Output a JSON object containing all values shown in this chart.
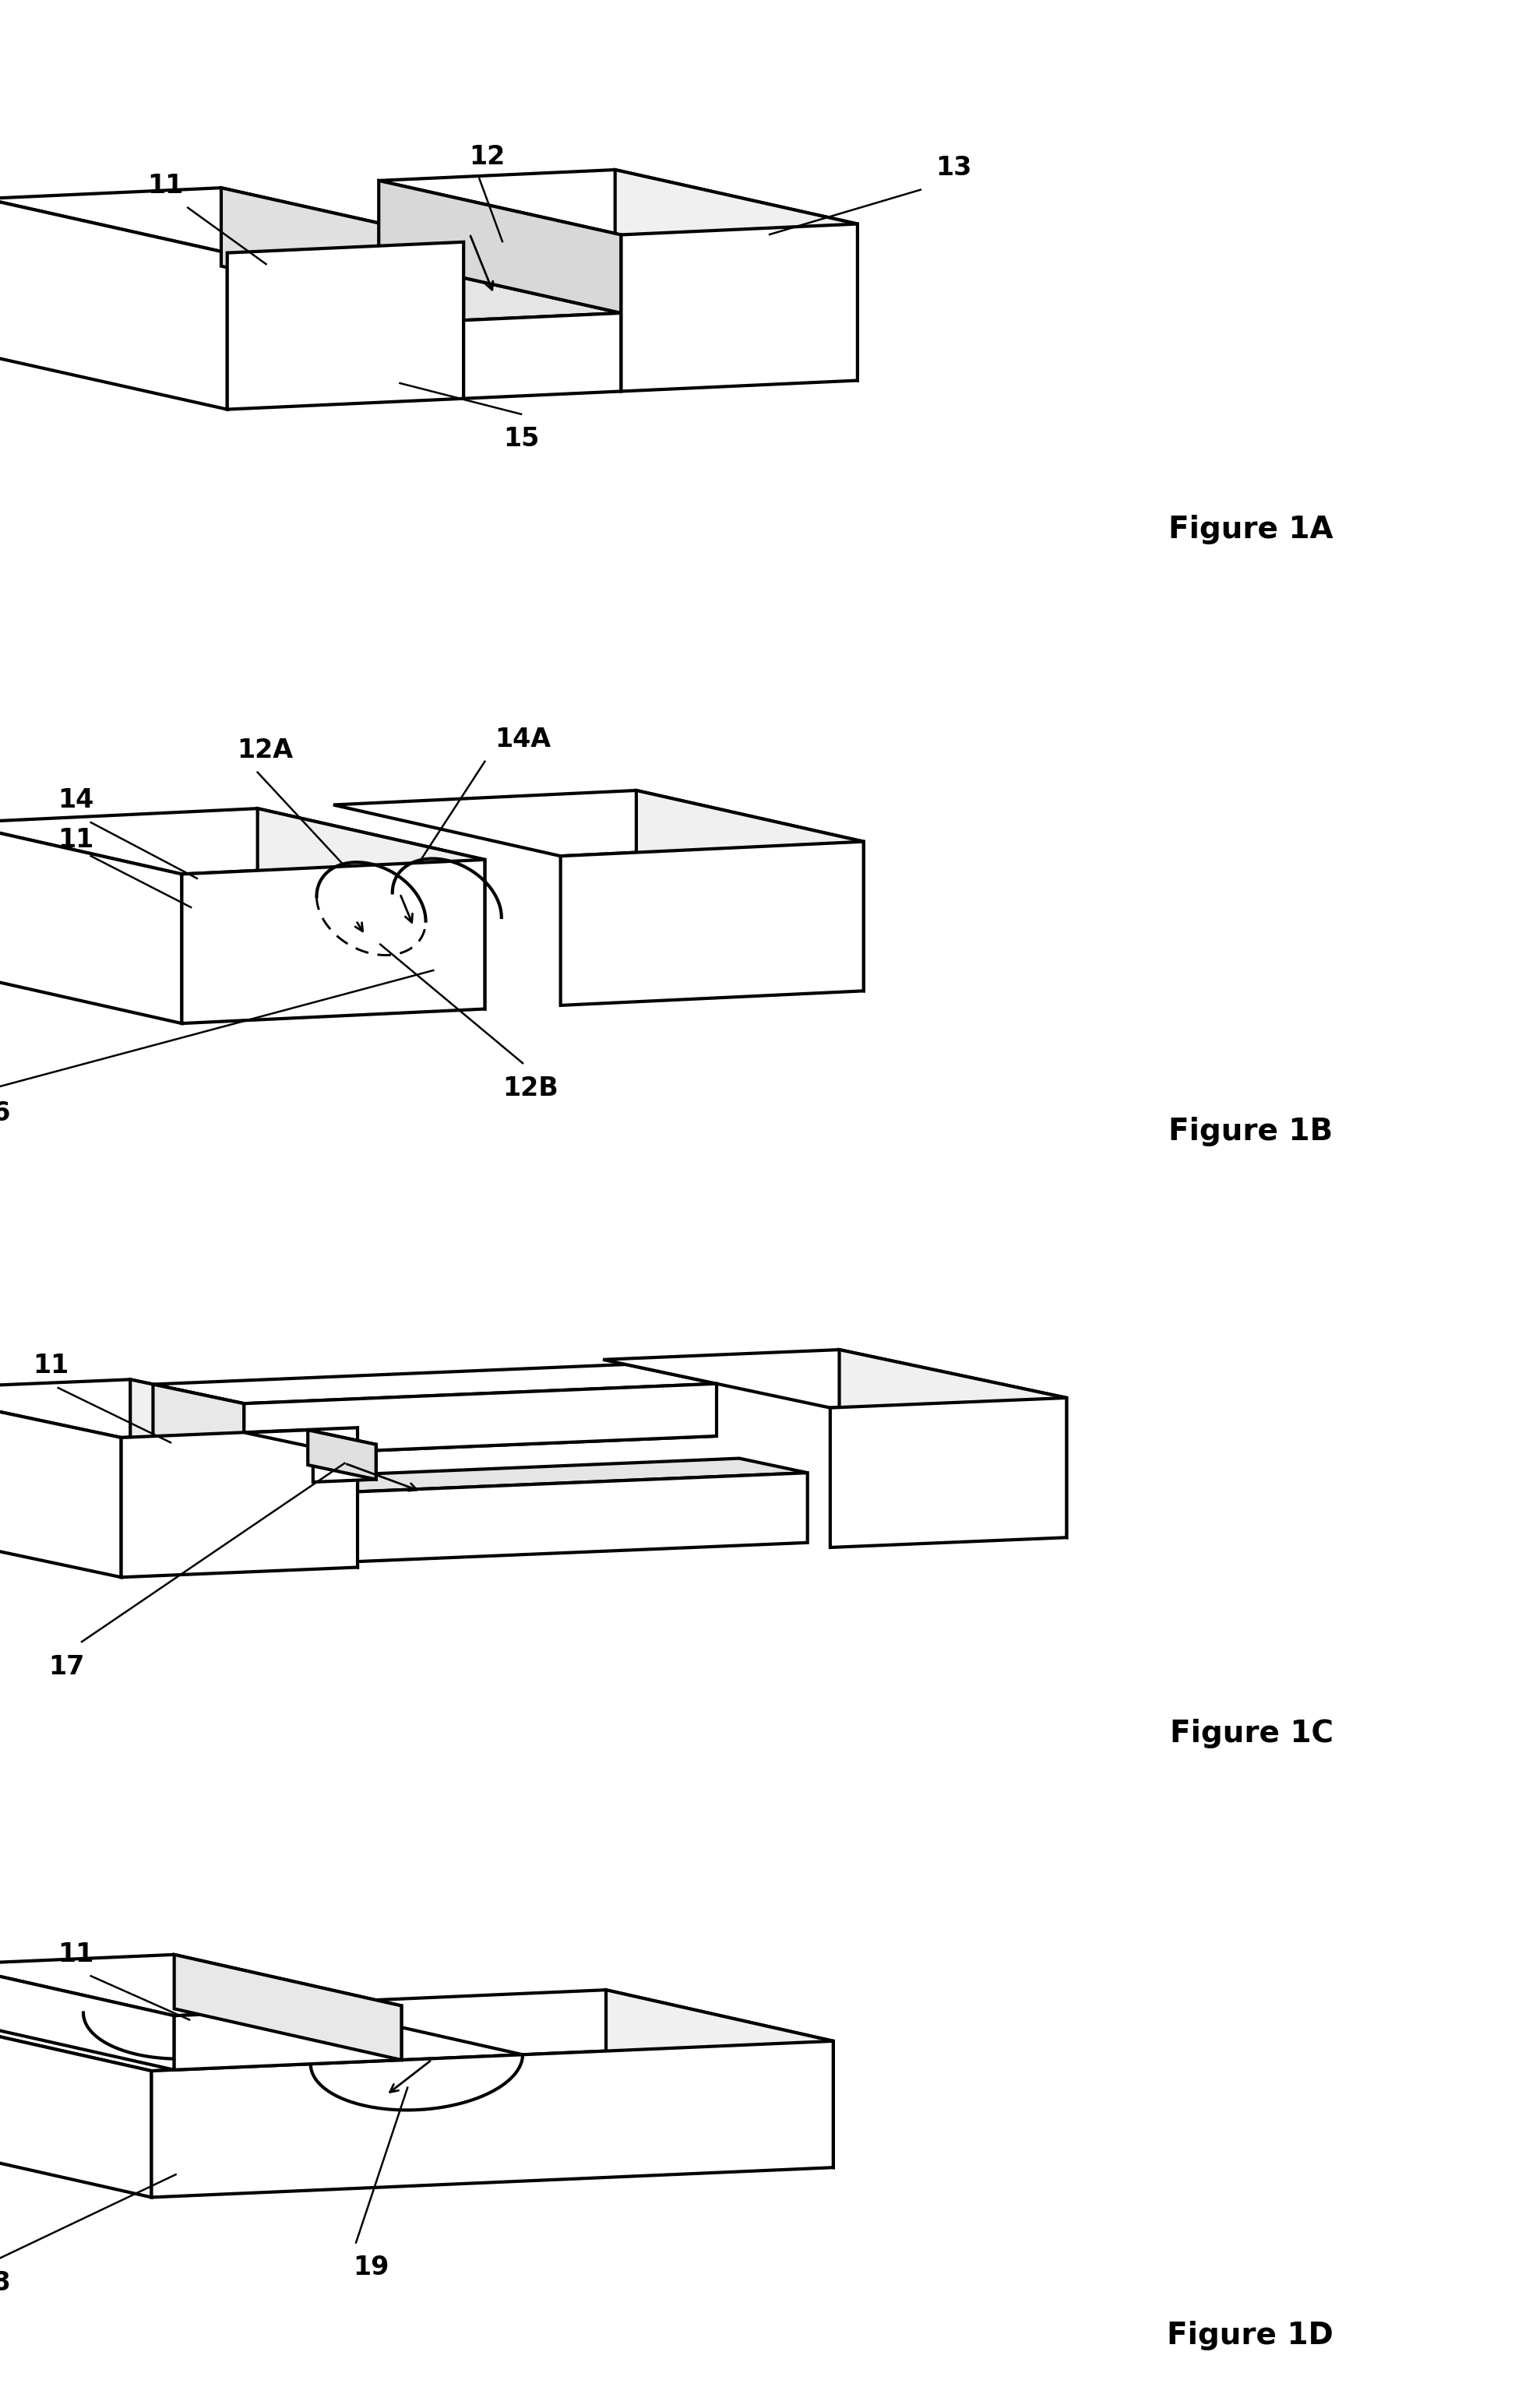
{
  "background_color": "#ffffff",
  "line_color": "#000000",
  "line_width": 3.0,
  "fig_width": 19.45,
  "fig_height": 30.92,
  "figure_labels": [
    "Figure 1A",
    "Figure 1B",
    "Figure 1C",
    "Figure 1D"
  ],
  "label_fontsize": 28,
  "annot_fontsize": 24
}
